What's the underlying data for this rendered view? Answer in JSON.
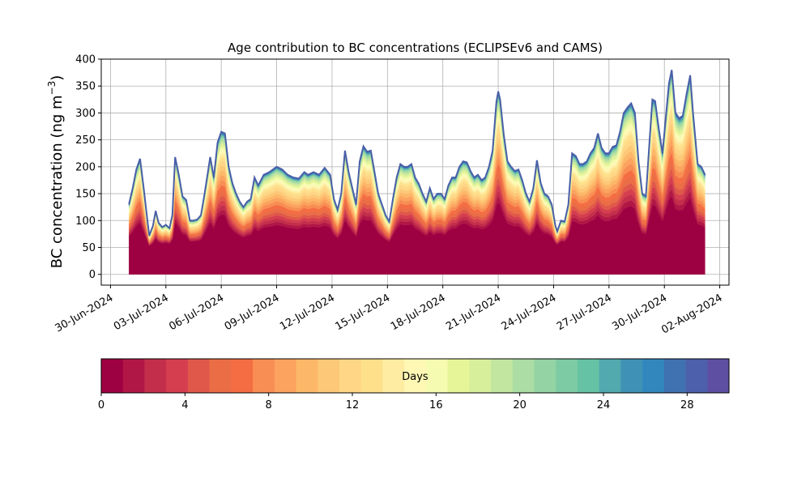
{
  "chart_data": {
    "type": "area",
    "title": "Age contribution to BC concentrations (ECLIPSEv6 and CAMS)",
    "ylabel_main": "BC concentration (ng m",
    "ylabel_sup": "−3",
    "ylabel_close": ")",
    "y_ticks": [
      0,
      50,
      100,
      150,
      200,
      250,
      300,
      350,
      400
    ],
    "ylim": [
      -20,
      400
    ],
    "xlim": [
      -0.5,
      33.5
    ],
    "grid": true,
    "x_tick_labels": [
      "30-Jun-2024",
      "03-Jul-2024",
      "06-Jul-2024",
      "09-Jul-2024",
      "12-Jul-2024",
      "15-Jul-2024",
      "18-Jul-2024",
      "21-Jul-2024",
      "24-Jul-2024",
      "27-Jul-2024",
      "30-Jul-2024",
      "02-Aug-2024"
    ],
    "x_tick_positions_days": [
      0,
      3,
      6,
      9,
      12,
      15,
      18,
      21,
      24,
      27,
      30,
      33
    ],
    "colorbar": {
      "label": "Days",
      "ticks": [
        0,
        4,
        8,
        12,
        16,
        20,
        24,
        28
      ],
      "range": [
        0,
        30
      ],
      "colormap": "Spectral",
      "colors": [
        "#9e0142",
        "#b11746",
        "#c32f4b",
        "#d53e4f",
        "#e0584a",
        "#ea6d46",
        "#f46d43",
        "#f88e53",
        "#fba35f",
        "#fdb768",
        "#fdc877",
        "#fed686",
        "#fee08b",
        "#feeca2",
        "#fff8b5",
        "#f6fbb2",
        "#e6f598",
        "#d7ef9b",
        "#c2e69f",
        "#abdda4",
        "#94d4a4",
        "#7dcba4",
        "#66c2a5",
        "#52a9ae",
        "#3f92b5",
        "#3288bd",
        "#4071b1",
        "#4c60ab",
        "#5e4fa2"
      ]
    },
    "total_series": {
      "name": "",
      "points": [
        [
          1.0,
          130
        ],
        [
          1.2,
          160
        ],
        [
          1.4,
          195
        ],
        [
          1.6,
          215
        ],
        [
          1.8,
          160
        ],
        [
          2.0,
          100
        ],
        [
          2.1,
          72
        ],
        [
          2.3,
          90
        ],
        [
          2.45,
          118
        ],
        [
          2.6,
          96
        ],
        [
          2.8,
          88
        ],
        [
          3.0,
          92
        ],
        [
          3.2,
          86
        ],
        [
          3.35,
          110
        ],
        [
          3.5,
          218
        ],
        [
          3.7,
          185
        ],
        [
          3.9,
          145
        ],
        [
          4.1,
          138
        ],
        [
          4.3,
          100
        ],
        [
          4.5,
          100
        ],
        [
          4.7,
          102
        ],
        [
          4.9,
          110
        ],
        [
          5.1,
          150
        ],
        [
          5.4,
          218
        ],
        [
          5.6,
          180
        ],
        [
          5.8,
          245
        ],
        [
          6.0,
          265
        ],
        [
          6.2,
          262
        ],
        [
          6.4,
          200
        ],
        [
          6.6,
          170
        ],
        [
          6.8,
          150
        ],
        [
          7.0,
          135
        ],
        [
          7.2,
          125
        ],
        [
          7.4,
          135
        ],
        [
          7.6,
          140
        ],
        [
          7.8,
          180
        ],
        [
          8.0,
          165
        ],
        [
          8.3,
          185
        ],
        [
          8.6,
          190
        ],
        [
          9.0,
          200
        ],
        [
          9.3,
          195
        ],
        [
          9.6,
          185
        ],
        [
          9.9,
          180
        ],
        [
          10.2,
          178
        ],
        [
          10.5,
          190
        ],
        [
          10.7,
          185
        ],
        [
          11.0,
          190
        ],
        [
          11.3,
          185
        ],
        [
          11.6,
          198
        ],
        [
          11.9,
          185
        ],
        [
          12.1,
          140
        ],
        [
          12.3,
          120
        ],
        [
          12.5,
          150
        ],
        [
          12.7,
          230
        ],
        [
          12.9,
          190
        ],
        [
          13.1,
          160
        ],
        [
          13.3,
          130
        ],
        [
          13.5,
          210
        ],
        [
          13.7,
          238
        ],
        [
          13.9,
          228
        ],
        [
          14.1,
          230
        ],
        [
          14.3,
          190
        ],
        [
          14.5,
          150
        ],
        [
          14.7,
          130
        ],
        [
          14.9,
          110
        ],
        [
          15.1,
          98
        ],
        [
          15.3,
          140
        ],
        [
          15.5,
          180
        ],
        [
          15.7,
          205
        ],
        [
          15.9,
          200
        ],
        [
          16.1,
          200
        ],
        [
          16.3,
          205
        ],
        [
          16.5,
          180
        ],
        [
          16.7,
          168
        ],
        [
          16.9,
          150
        ],
        [
          17.1,
          135
        ],
        [
          17.3,
          160
        ],
        [
          17.5,
          140
        ],
        [
          17.7,
          150
        ],
        [
          17.9,
          150
        ],
        [
          18.1,
          140
        ],
        [
          18.3,
          165
        ],
        [
          18.5,
          180
        ],
        [
          18.7,
          180
        ],
        [
          18.9,
          200
        ],
        [
          19.1,
          210
        ],
        [
          19.3,
          208
        ],
        [
          19.5,
          192
        ],
        [
          19.7,
          180
        ],
        [
          19.9,
          185
        ],
        [
          20.1,
          175
        ],
        [
          20.3,
          180
        ],
        [
          20.5,
          200
        ],
        [
          20.7,
          230
        ],
        [
          20.9,
          320
        ],
        [
          21.0,
          340
        ],
        [
          21.1,
          325
        ],
        [
          21.3,
          260
        ],
        [
          21.5,
          210
        ],
        [
          21.7,
          200
        ],
        [
          21.9,
          192
        ],
        [
          22.1,
          195
        ],
        [
          22.3,
          175
        ],
        [
          22.5,
          150
        ],
        [
          22.7,
          135
        ],
        [
          22.9,
          160
        ],
        [
          23.1,
          212
        ],
        [
          23.3,
          170
        ],
        [
          23.5,
          150
        ],
        [
          23.7,
          145
        ],
        [
          23.9,
          130
        ],
        [
          24.1,
          90
        ],
        [
          24.2,
          80
        ],
        [
          24.4,
          100
        ],
        [
          24.6,
          98
        ],
        [
          24.8,
          130
        ],
        [
          25.0,
          225
        ],
        [
          25.2,
          220
        ],
        [
          25.4,
          205
        ],
        [
          25.6,
          205
        ],
        [
          25.8,
          210
        ],
        [
          26.0,
          225
        ],
        [
          26.2,
          235
        ],
        [
          26.4,
          262
        ],
        [
          26.6,
          235
        ],
        [
          26.8,
          225
        ],
        [
          27.0,
          225
        ],
        [
          27.2,
          237
        ],
        [
          27.4,
          240
        ],
        [
          27.6,
          265
        ],
        [
          27.8,
          300
        ],
        [
          28.0,
          310
        ],
        [
          28.2,
          318
        ],
        [
          28.4,
          300
        ],
        [
          28.6,
          210
        ],
        [
          28.8,
          150
        ],
        [
          29.0,
          145
        ],
        [
          29.2,
          250
        ],
        [
          29.35,
          325
        ],
        [
          29.5,
          322
        ],
        [
          29.7,
          270
        ],
        [
          29.9,
          225
        ],
        [
          30.1,
          300
        ],
        [
          30.25,
          355
        ],
        [
          30.4,
          380
        ],
        [
          30.6,
          300
        ],
        [
          30.8,
          290
        ],
        [
          31.0,
          295
        ],
        [
          31.2,
          335
        ],
        [
          31.4,
          370
        ],
        [
          31.55,
          300
        ],
        [
          31.8,
          205
        ],
        [
          32.0,
          200
        ],
        [
          32.2,
          185
        ]
      ]
    },
    "share_profile": {
      "day_limits": [
        1.0,
        5.0,
        9.0,
        13.0,
        17.0,
        21.0,
        25.0,
        29.0,
        30.0
      ],
      "cumulative_fraction": [
        0.3,
        0.45,
        0.62,
        0.78,
        0.88,
        0.95,
        0.98,
        0.995,
        1.0
      ],
      "base_level_ng": 45
    }
  }
}
